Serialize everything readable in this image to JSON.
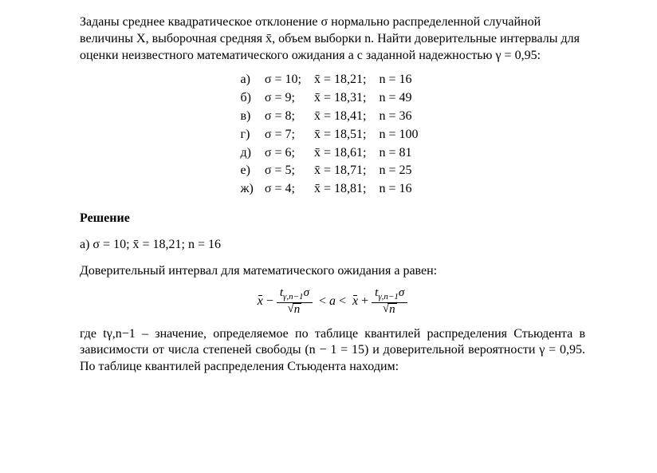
{
  "intro": {
    "full": "Заданы среднее квадратическое отклонение σ нормально распределенной случайной величины X, выборочная средняя x̄, объем выборки n. Найти доверительные интервалы для оценки неизвестного математического ожидания a с заданной надежностью γ = 0,95:"
  },
  "cases": [
    {
      "label": "а)",
      "sigma": "σ = 10;",
      "xbar": "x̄ = 18,21;",
      "n": "n = 16"
    },
    {
      "label": "б)",
      "sigma": "σ = 9;",
      "xbar": "x̄ = 18,31;",
      "n": "n = 49"
    },
    {
      "label": "в)",
      "sigma": "σ = 8;",
      "xbar": "x̄ = 18,41;",
      "n": "n = 36"
    },
    {
      "label": "г)",
      "sigma": "σ = 7;",
      "xbar": "x̄ = 18,51;",
      "n": "n = 100"
    },
    {
      "label": "д)",
      "sigma": "σ = 6;",
      "xbar": "x̄ = 18,61;",
      "n": "n = 81"
    },
    {
      "label": "е)",
      "sigma": "σ = 5;",
      "xbar": "x̄ = 18,71;",
      "n": "n = 25"
    },
    {
      "label": "ж)",
      "sigma": "σ = 4;",
      "xbar": "x̄ = 18,81;",
      "n": "n = 16"
    }
  ],
  "solution": {
    "title": "Решение",
    "case_a": "а)   σ = 10;    x̄ = 18,21;    n = 16",
    "ci_text": "Доверительный интервал для математического ожидания a равен:",
    "t_explain": "где tγ,n−1 – значение, определяемое по таблице квантилей распределения Стьюдента в зависимости от числа степеней свободы (n − 1 = 15) и доверительной вероятности γ = 0,95. По таблице квантилей распределения Стьюдента находим:"
  },
  "formula": {
    "t_sub": "γ,n−1",
    "sigma": "σ",
    "sqrt_n": "n",
    "lt": "<",
    "a": "a",
    "minus": "−",
    "plus": "+"
  },
  "style": {
    "text_color": "#000000",
    "background": "#ffffff",
    "font_family": "Times New Roman"
  }
}
